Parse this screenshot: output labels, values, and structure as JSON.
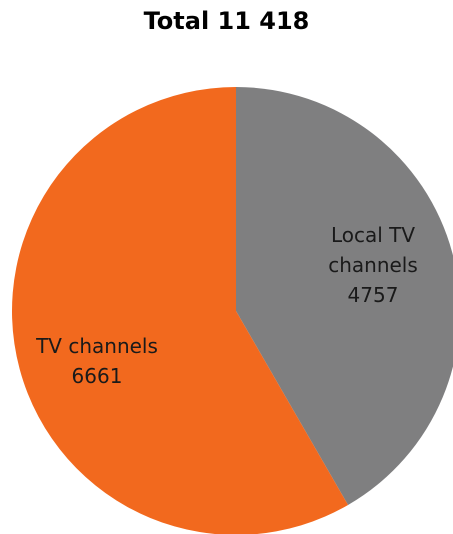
{
  "chart_data": {
    "type": "pie",
    "title": "Total 11 418",
    "slices": [
      {
        "label_lines": [
          "Local TV",
          "channels"
        ],
        "value": 4757,
        "value_label": "4757",
        "color": "#7f7f80"
      },
      {
        "label_lines": [
          "TV channels"
        ],
        "value": 6661,
        "value_label": "6661",
        "color": "#f2691e"
      }
    ],
    "start_angle": "top (12 o'clock)",
    "direction": "clockwise"
  }
}
